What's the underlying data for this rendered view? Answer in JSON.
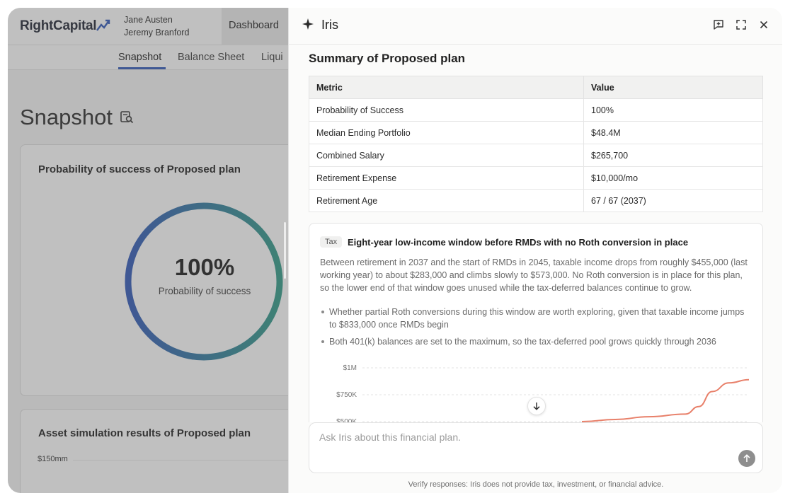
{
  "app": {
    "logo": "RightCapital",
    "clients": [
      "Jane Austen",
      "Jeremy Branford"
    ],
    "nav": {
      "dashboard": "Dashboard"
    },
    "tabs": [
      {
        "label": "Snapshot",
        "active": true
      },
      {
        "label": "Balance Sheet",
        "active": false
      },
      {
        "label": "Liqui",
        "active": false
      }
    ],
    "page_title": "Snapshot",
    "success_card": {
      "title": "Probability of success of Proposed plan",
      "value": "100%",
      "label": "Probability of success",
      "probability": 1.0
    },
    "asset_card": {
      "title": "Asset simulation results of Proposed plan",
      "y_tick": "$150mm"
    }
  },
  "panel": {
    "title": "Iris",
    "icons": [
      "new-chat-icon",
      "expand-icon",
      "close-icon"
    ],
    "summary_title": "Summary of Proposed plan",
    "table": {
      "headers": [
        "Metric",
        "Value"
      ],
      "rows": [
        [
          "Probability of Success",
          "100%"
        ],
        [
          "Median Ending Portfolio",
          "$48.4M"
        ],
        [
          "Combined Salary",
          "$265,700"
        ],
        [
          "Retirement Expense",
          "$10,000/mo"
        ],
        [
          "Retirement Age",
          "67 / 67 (2037)"
        ]
      ]
    },
    "insight": {
      "tag": "Tax",
      "title": "Eight-year low-income window before RMDs with no Roth conversion in place",
      "body": "Between retirement in 2037 and the start of RMDs in 2045, taxable income drops from roughly $455,000 (last working year) to about $283,000 and climbs slowly to $573,000. No Roth conversion is in place for this plan, so the lower end of that window goes unused while the tax-deferred balances continue to grow.",
      "bullets": [
        "Whether partial Roth conversions during this window are worth exploring, given that taxable income jumps to $833,000 once RMDs begin",
        "Both 401(k) balances are set to the maximum, so the tax-deferred pool grows quickly through 2036"
      ]
    },
    "chart_data": {
      "type": "line",
      "y_ticks": [
        "$1M",
        "$750K",
        "$500K"
      ],
      "ylim": [
        500000,
        1000000
      ],
      "grid": true,
      "series_color": "#e8806a",
      "points": [
        {
          "x": 0.0,
          "y": 500000
        },
        {
          "x": 0.2,
          "y": 520000
        },
        {
          "x": 0.4,
          "y": 545000
        },
        {
          "x": 0.62,
          "y": 570000
        },
        {
          "x": 0.7,
          "y": 640000
        },
        {
          "x": 0.78,
          "y": 780000
        },
        {
          "x": 0.88,
          "y": 860000
        },
        {
          "x": 1.0,
          "y": 890000
        }
      ]
    },
    "composer": {
      "placeholder": "Ask Iris about this financial plan."
    },
    "disclaimer": "Verify responses: Iris does not provide tax, investment, or financial advice."
  }
}
